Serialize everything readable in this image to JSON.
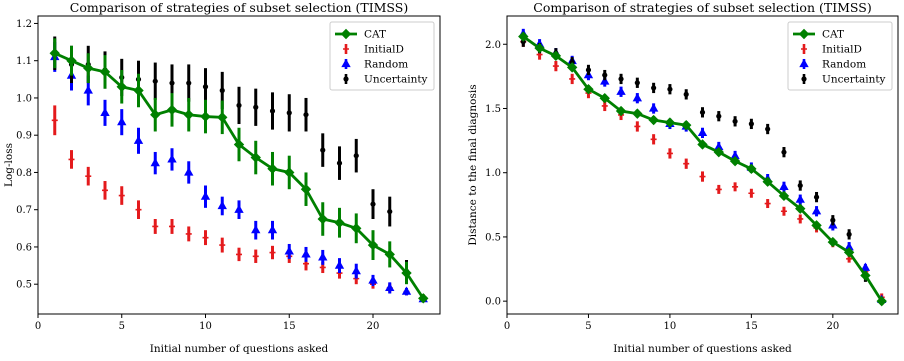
{
  "chart_data": [
    {
      "type": "line",
      "title": "Comparison of strategies of subset selection (TIMSS)",
      "xlabel": "Initial number of questions asked",
      "ylabel": "Log-loss",
      "xlim": [
        0,
        24
      ],
      "ylim": [
        0.42,
        1.22
      ],
      "xticks": [
        0,
        5,
        10,
        15,
        20
      ],
      "yticks": [
        0.5,
        0.6,
        0.7,
        0.8,
        0.9,
        1.0,
        1.1,
        1.2
      ],
      "ytick_labels": [
        "0.5",
        "0.6",
        "0.7",
        "0.8",
        "0.9",
        "1.0",
        "1.1",
        "1.2"
      ],
      "legend_position": "top-right",
      "series": [
        {
          "name": "CAT",
          "color": "#008000",
          "marker": "diamond",
          "line": true,
          "x": [
            1,
            2,
            3,
            4,
            5,
            6,
            7,
            8,
            9,
            10,
            11,
            12,
            13,
            14,
            15,
            16,
            17,
            18,
            19,
            20,
            21,
            22,
            23
          ],
          "y": [
            1.12,
            1.1,
            1.08,
            1.07,
            1.03,
            1.02,
            0.955,
            0.968,
            0.955,
            0.95,
            0.948,
            0.875,
            0.84,
            0.81,
            0.8,
            0.755,
            0.675,
            0.665,
            0.65,
            0.605,
            0.58,
            0.53,
            0.462
          ],
          "err": [
            0.04,
            0.04,
            0.04,
            0.045,
            0.045,
            0.045,
            0.045,
            0.045,
            0.045,
            0.045,
            0.045,
            0.045,
            0.045,
            0.045,
            0.045,
            0.045,
            0.045,
            0.04,
            0.04,
            0.04,
            0.035,
            0.03,
            0.01
          ]
        },
        {
          "name": "InitialD",
          "color": "#e41a1c",
          "marker": "plus",
          "x": [
            1,
            2,
            3,
            4,
            5,
            6,
            7,
            8,
            9,
            10,
            11,
            12,
            13,
            14,
            15,
            16,
            17,
            18,
            19,
            20,
            21,
            22,
            23
          ],
          "y": [
            0.94,
            0.835,
            0.79,
            0.752,
            0.738,
            0.7,
            0.655,
            0.655,
            0.635,
            0.625,
            0.605,
            0.58,
            0.575,
            0.585,
            0.575,
            0.555,
            0.545,
            0.53,
            0.515,
            0.5,
            0.49,
            0.48,
            0.465
          ],
          "err": [
            0.04,
            0.025,
            0.025,
            0.025,
            0.025,
            0.025,
            0.02,
            0.02,
            0.02,
            0.02,
            0.02,
            0.018,
            0.018,
            0.018,
            0.018,
            0.018,
            0.015,
            0.015,
            0.015,
            0.012,
            0.012,
            0.01,
            0.008
          ]
        },
        {
          "name": "Random",
          "color": "#0000ff",
          "marker": "triangle",
          "x": [
            1,
            2,
            3,
            4,
            5,
            6,
            7,
            8,
            9,
            10,
            11,
            12,
            13,
            14,
            15,
            16,
            17,
            18,
            19,
            20,
            21,
            22,
            23
          ],
          "y": [
            1.11,
            1.06,
            1.02,
            0.96,
            0.935,
            0.885,
            0.825,
            0.835,
            0.8,
            0.735,
            0.71,
            0.7,
            0.645,
            0.645,
            0.588,
            0.58,
            0.572,
            0.55,
            0.535,
            0.51,
            0.49,
            0.48,
            0.46
          ],
          "err": [
            0.04,
            0.04,
            0.04,
            0.035,
            0.035,
            0.035,
            0.03,
            0.03,
            0.03,
            0.03,
            0.025,
            0.025,
            0.025,
            0.025,
            0.02,
            0.02,
            0.02,
            0.02,
            0.02,
            0.015,
            0.015,
            0.01,
            0.008
          ]
        },
        {
          "name": "Uncertainty",
          "color": "#000000",
          "marker": "circle",
          "x": [
            1,
            2,
            3,
            4,
            5,
            6,
            7,
            8,
            9,
            10,
            11,
            12,
            13,
            14,
            15,
            16,
            17,
            18,
            19,
            20,
            21,
            22,
            23
          ],
          "y": [
            1.12,
            1.09,
            1.09,
            1.075,
            1.055,
            1.05,
            1.045,
            1.04,
            1.04,
            1.03,
            1.02,
            0.98,
            0.975,
            0.965,
            0.96,
            0.955,
            0.86,
            0.825,
            0.845,
            0.715,
            0.695,
            0.535,
            0.462
          ],
          "err": [
            0.045,
            0.05,
            0.05,
            0.05,
            0.05,
            0.05,
            0.05,
            0.05,
            0.05,
            0.05,
            0.05,
            0.05,
            0.05,
            0.05,
            0.05,
            0.045,
            0.045,
            0.045,
            0.045,
            0.04,
            0.04,
            0.03,
            0.01
          ]
        }
      ]
    },
    {
      "type": "line",
      "title": "Comparison of strategies of subset selection (TIMSS)",
      "xlabel": "Initial number of questions asked",
      "ylabel": "Distance to the final diagnosis",
      "xlim": [
        0,
        24
      ],
      "ylim": [
        -0.1,
        2.22
      ],
      "xticks": [
        0,
        5,
        10,
        15,
        20
      ],
      "yticks": [
        0.0,
        0.5,
        1.0,
        1.5,
        2.0
      ],
      "ytick_labels": [
        "0.0",
        "0.5",
        "1.0",
        "1.5",
        "2.0"
      ],
      "legend_position": "top-right",
      "series": [
        {
          "name": "CAT",
          "color": "#008000",
          "marker": "diamond",
          "line": true,
          "x": [
            1,
            2,
            3,
            4,
            5,
            6,
            7,
            8,
            9,
            10,
            11,
            12,
            13,
            14,
            15,
            16,
            17,
            18,
            19,
            20,
            21,
            22,
            23
          ],
          "y": [
            2.06,
            1.97,
            1.91,
            1.82,
            1.65,
            1.58,
            1.48,
            1.46,
            1.41,
            1.39,
            1.37,
            1.22,
            1.16,
            1.09,
            1.03,
            0.93,
            0.82,
            0.72,
            0.59,
            0.46,
            0.38,
            0.2,
            0.0
          ],
          "err": [
            0.03,
            0.03,
            0.03,
            0.03,
            0.03,
            0.03,
            0.03,
            0.03,
            0.03,
            0.03,
            0.03,
            0.03,
            0.03,
            0.03,
            0.03,
            0.03,
            0.03,
            0.03,
            0.03,
            0.03,
            0.03,
            0.03,
            0.02
          ]
        },
        {
          "name": "InitialD",
          "color": "#e41a1c",
          "marker": "plus",
          "x": [
            1,
            2,
            3,
            4,
            5,
            6,
            7,
            8,
            9,
            10,
            11,
            12,
            13,
            14,
            15,
            16,
            17,
            18,
            19,
            20,
            21,
            22,
            23
          ],
          "y": [
            2.02,
            1.92,
            1.83,
            1.73,
            1.62,
            1.52,
            1.45,
            1.36,
            1.26,
            1.15,
            1.07,
            0.97,
            0.87,
            0.89,
            0.84,
            0.76,
            0.7,
            0.64,
            0.57,
            0.45,
            0.33,
            0.23,
            0.03
          ],
          "err": [
            0.04,
            0.04,
            0.04,
            0.04,
            0.04,
            0.04,
            0.04,
            0.04,
            0.04,
            0.04,
            0.04,
            0.04,
            0.035,
            0.035,
            0.035,
            0.035,
            0.035,
            0.035,
            0.035,
            0.03,
            0.03,
            0.03,
            0.03
          ]
        },
        {
          "name": "Random",
          "color": "#0000ff",
          "marker": "triangle",
          "x": [
            1,
            2,
            3,
            4,
            5,
            6,
            7,
            8,
            9,
            10,
            11,
            12,
            13,
            14,
            15,
            16,
            17,
            18,
            19,
            20,
            21,
            22,
            23
          ],
          "y": [
            2.08,
            2.0,
            1.93,
            1.87,
            1.76,
            1.71,
            1.63,
            1.58,
            1.5,
            1.38,
            1.36,
            1.31,
            1.2,
            1.13,
            1.04,
            0.95,
            0.89,
            0.79,
            0.7,
            0.59,
            0.42,
            0.26,
            0.01
          ],
          "err": [
            0.04,
            0.04,
            0.04,
            0.04,
            0.04,
            0.04,
            0.04,
            0.04,
            0.04,
            0.04,
            0.04,
            0.04,
            0.04,
            0.04,
            0.04,
            0.04,
            0.04,
            0.04,
            0.04,
            0.04,
            0.04,
            0.03,
            0.02
          ]
        },
        {
          "name": "Uncertainty",
          "color": "#000000",
          "marker": "circle",
          "x": [
            1,
            2,
            3,
            4,
            5,
            6,
            7,
            8,
            9,
            10,
            11,
            12,
            13,
            14,
            15,
            16,
            17,
            18,
            19,
            20,
            21,
            22,
            23
          ],
          "y": [
            2.02,
            1.97,
            1.93,
            1.86,
            1.8,
            1.76,
            1.73,
            1.7,
            1.66,
            1.65,
            1.61,
            1.47,
            1.44,
            1.4,
            1.38,
            1.34,
            1.16,
            0.9,
            0.81,
            0.63,
            0.52,
            0.19,
            0.0
          ],
          "err": [
            0.04,
            0.04,
            0.04,
            0.04,
            0.04,
            0.04,
            0.04,
            0.04,
            0.04,
            0.04,
            0.04,
            0.04,
            0.04,
            0.04,
            0.04,
            0.04,
            0.04,
            0.04,
            0.04,
            0.04,
            0.04,
            0.04,
            0.03
          ]
        }
      ]
    }
  ]
}
